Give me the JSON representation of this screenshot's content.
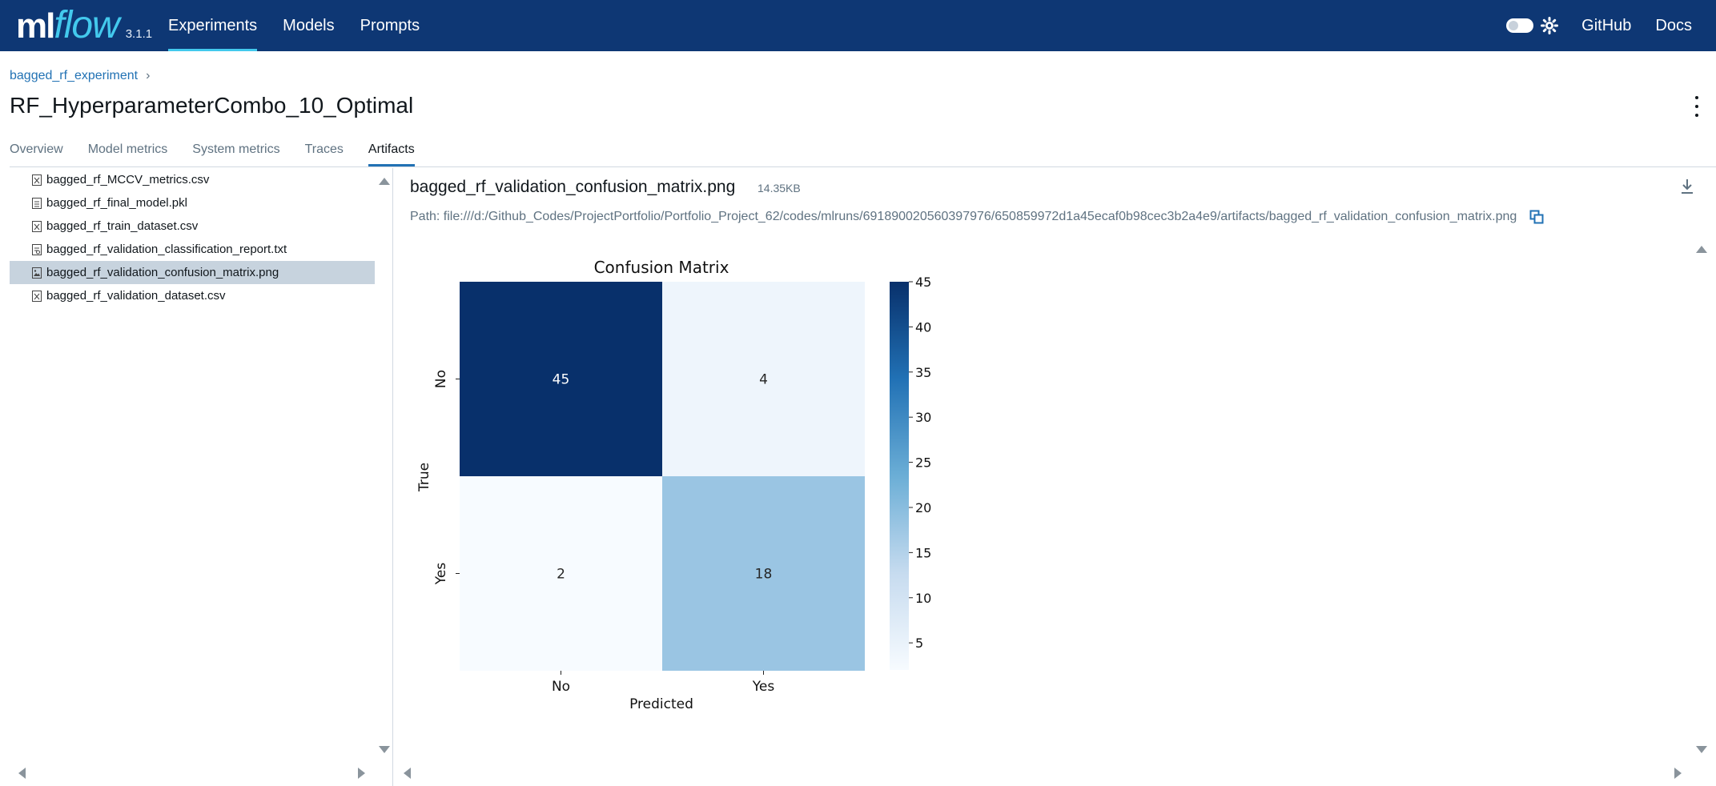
{
  "app": {
    "logo_ml": "ml",
    "logo_flow": "flow",
    "version": "3.1.1",
    "nav": [
      "Experiments",
      "Models",
      "Prompts"
    ],
    "active_nav": "Experiments",
    "top_links": [
      "GitHub",
      "Docs"
    ]
  },
  "header": {
    "breadcrumb": "bagged_rf_experiment",
    "breadcrumb_sep": "›",
    "title": "RF_HyperparameterCombo_10_Optimal",
    "tabs": [
      "Overview",
      "Model metrics",
      "System metrics",
      "Traces",
      "Artifacts"
    ],
    "active_tab": "Artifacts"
  },
  "artifacts": {
    "files": [
      {
        "name": "bagged_rf_MCCV_metrics.csv",
        "icon": "spreadsheet-file-icon"
      },
      {
        "name": "bagged_rf_final_model.pkl",
        "icon": "file-icon"
      },
      {
        "name": "bagged_rf_train_dataset.csv",
        "icon": "spreadsheet-file-icon"
      },
      {
        "name": "bagged_rf_validation_classification_report.txt",
        "icon": "text-file-icon"
      },
      {
        "name": "bagged_rf_validation_confusion_matrix.png",
        "icon": "image-file-icon"
      },
      {
        "name": "bagged_rf_validation_dataset.csv",
        "icon": "spreadsheet-file-icon"
      }
    ],
    "selected": "bagged_rf_validation_confusion_matrix.png",
    "preview": {
      "file_name": "bagged_rf_validation_confusion_matrix.png",
      "size": "14.35KB",
      "path": "Path: file:///d:/Github_Codes/ProjectPortfolio/Portfolio_Project_62/codes/mlruns/691890020560397976/650859972d1a45ecaf0b98cec3b2a4e9/artifacts/bagged_rf_validation_confusion_matrix.png"
    }
  },
  "colors": {
    "topbar": "#0e3774",
    "accent": "#2272b4",
    "selected_row": "#c7d3de"
  },
  "chart_data": {
    "type": "heatmap",
    "title": "Confusion Matrix",
    "xlabel": "Predicted",
    "ylabel": "True",
    "x_categories": [
      "No",
      "Yes"
    ],
    "y_categories": [
      "No",
      "Yes"
    ],
    "values": [
      [
        45,
        4
      ],
      [
        2,
        18
      ]
    ],
    "colorbar": {
      "min": 2,
      "max": 45,
      "ticks": [
        5,
        10,
        15,
        20,
        25,
        30,
        35,
        40,
        45
      ],
      "colormap": "Blues"
    }
  }
}
